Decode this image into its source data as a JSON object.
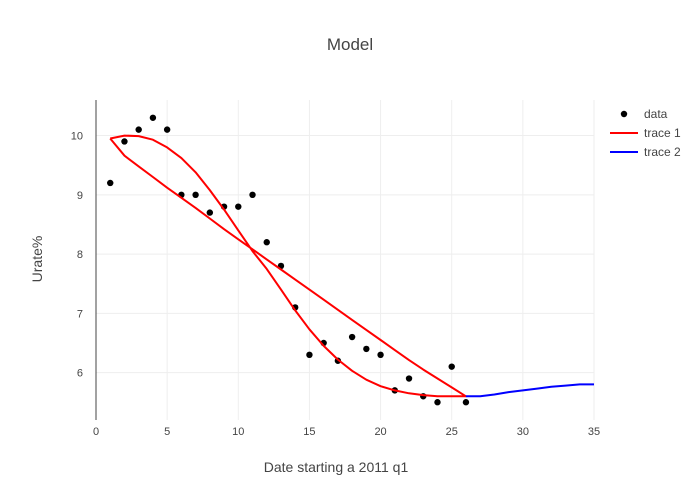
{
  "chart_data": {
    "type": "scatter",
    "title": "Model",
    "xlabel": "Date starting a 2011 q1",
    "ylabel": "Urate%",
    "xlim": [
      0,
      35
    ],
    "ylim": [
      5.2,
      10.6
    ],
    "xticks": [
      0,
      5,
      10,
      15,
      20,
      25,
      30,
      35
    ],
    "yticks": [
      6,
      7,
      8,
      9,
      10
    ],
    "grid": true,
    "legend": "top-right",
    "series": [
      {
        "name": "data",
        "mode": "markers",
        "color": "#000000",
        "x": [
          1,
          2,
          3,
          4,
          5,
          6,
          7,
          8,
          9,
          10,
          11,
          12,
          13,
          14,
          15,
          16,
          17,
          18,
          19,
          20,
          21,
          22,
          23,
          24,
          25,
          26
        ],
        "y": [
          9.2,
          9.9,
          10.1,
          10.3,
          10.1,
          9.0,
          9.0,
          8.7,
          8.8,
          8.8,
          9.0,
          8.2,
          7.8,
          7.1,
          6.3,
          6.5,
          6.2,
          6.6,
          6.4,
          6.3,
          5.7,
          5.9,
          5.6,
          5.5,
          6.1,
          5.5
        ]
      },
      {
        "name": "trace 1",
        "mode": "lines",
        "color": "#ff0000",
        "x": [
          1,
          2,
          3,
          4,
          5,
          6,
          7,
          8,
          9,
          10,
          11,
          12,
          13,
          14,
          15,
          16,
          17,
          18,
          19,
          20,
          21,
          22,
          23,
          24,
          25,
          26,
          25,
          24,
          23,
          22,
          21,
          20,
          19,
          18,
          17,
          16,
          15,
          14,
          13,
          12,
          11,
          10,
          9,
          8,
          7,
          6,
          5,
          4,
          3,
          2,
          1
        ],
        "y": [
          9.95,
          10.0,
          9.99,
          9.93,
          9.8,
          9.62,
          9.38,
          9.08,
          8.75,
          8.4,
          8.05,
          7.75,
          7.4,
          7.05,
          6.73,
          6.45,
          6.22,
          6.03,
          5.88,
          5.77,
          5.7,
          5.65,
          5.62,
          5.6,
          5.6,
          5.6,
          5.75,
          5.9,
          6.05,
          6.21,
          6.38,
          6.55,
          6.72,
          6.89,
          7.06,
          7.23,
          7.4,
          7.57,
          7.74,
          7.91,
          8.08,
          8.25,
          8.42,
          8.6,
          8.78,
          8.95,
          9.12,
          9.3,
          9.48,
          9.66,
          9.95
        ]
      },
      {
        "name": "trace 2",
        "mode": "lines",
        "color": "#0000ff",
        "x": [
          26,
          27,
          28,
          29,
          30,
          31,
          32,
          33,
          34,
          35
        ],
        "y": [
          5.6,
          5.6,
          5.63,
          5.67,
          5.7,
          5.73,
          5.76,
          5.78,
          5.8,
          5.8
        ]
      }
    ]
  }
}
